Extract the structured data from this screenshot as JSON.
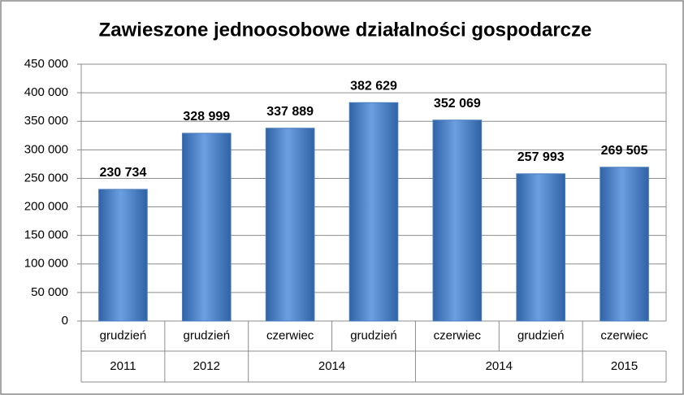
{
  "chart_data": {
    "type": "bar",
    "title": "Zawieszone jednoosobowe działalności gospodarcze",
    "categories": [
      "grudzień",
      "grudzień",
      "czerwiec",
      "grudzień",
      "czerwiec",
      "grudzień",
      "czerwiec"
    ],
    "groups": [
      {
        "label": "2011",
        "span": 1
      },
      {
        "label": "2012",
        "span": 1
      },
      {
        "label": "2014",
        "span": 2
      },
      {
        "label": "2014",
        "span": 2
      },
      {
        "label": "2015",
        "span": 1
      }
    ],
    "values": [
      230734,
      328999,
      337889,
      382629,
      352069,
      257993,
      269505
    ],
    "value_labels": [
      "230 734",
      "328 999",
      "337 889",
      "382 629",
      "352 069",
      "257 993",
      "269 505"
    ],
    "color": "#4a7ebb",
    "ylim": [
      0,
      450000
    ],
    "yticks": [
      0,
      {
        "value": 50000,
        "label": "50 000"
      },
      {
        "value": 100000,
        "label": "100 000"
      },
      {
        "value": 150000,
        "label": "150 000"
      },
      {
        "value": 200000,
        "label": "200 000"
      },
      {
        "value": 250000,
        "label": "250 000"
      },
      {
        "value": 300000,
        "label": "300 000"
      },
      {
        "value": 350000,
        "label": "350 000"
      },
      {
        "value": 400000,
        "label": "400 000"
      },
      {
        "value": 450000,
        "label": "450 000"
      }
    ],
    "grid": true
  }
}
